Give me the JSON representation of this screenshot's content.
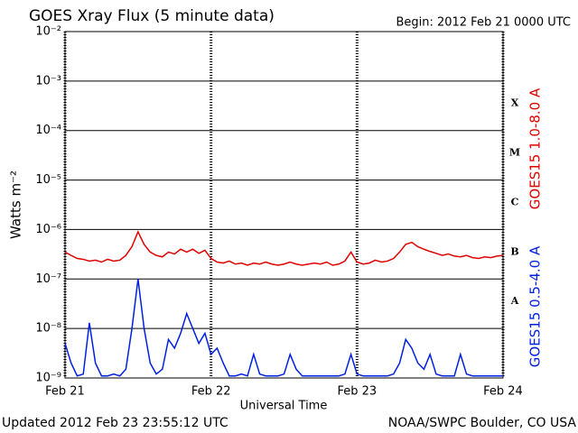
{
  "chart_data": {
    "type": "line",
    "title": "GOES Xray Flux (5 minute data)",
    "subtitle": "Begin:  2012 Feb 21 0000 UTC",
    "y_label": "Watts m⁻²",
    "x_label": "Universal Time",
    "footer_left": "Updated 2012 Feb 23 23:55:12 UTC",
    "footer_right": "NOAA/SWPC Boulder, CO USA",
    "log_y": true,
    "grid": true,
    "xlim": [
      0,
      72
    ],
    "xticks": [
      {
        "value": 0,
        "label": "Feb 21"
      },
      {
        "value": 24,
        "label": "Feb 22"
      },
      {
        "value": 48,
        "label": "Feb 23"
      },
      {
        "value": 72,
        "label": "Feb 24"
      }
    ],
    "ylim": [
      1e-09,
      0.01
    ],
    "yticks": [
      {
        "value": 1e-09,
        "label": "10⁻⁹"
      },
      {
        "value": 1e-08,
        "label": "10⁻⁸"
      },
      {
        "value": 1e-07,
        "label": "10⁻⁷"
      },
      {
        "value": 1e-06,
        "label": "10⁻⁶"
      },
      {
        "value": 1e-05,
        "label": "10⁻⁵"
      },
      {
        "value": 0.0001,
        "label": "10⁻⁴"
      },
      {
        "value": 0.001,
        "label": "10⁻³"
      },
      {
        "value": 0.01,
        "label": "10⁻²"
      }
    ],
    "flare_classes": [
      {
        "label": "X",
        "lower": 0.0001
      },
      {
        "label": "M",
        "lower": 1e-05
      },
      {
        "label": "C",
        "lower": 1e-06
      },
      {
        "label": "B",
        "lower": 1e-07
      },
      {
        "label": "A",
        "lower": 1e-08
      }
    ],
    "x": [
      0,
      1,
      2,
      3,
      4,
      5,
      6,
      7,
      8,
      9,
      10,
      11,
      12,
      13,
      14,
      15,
      16,
      17,
      18,
      19,
      20,
      21,
      22,
      23,
      24,
      25,
      26,
      27,
      28,
      29,
      30,
      31,
      32,
      33,
      34,
      35,
      36,
      37,
      38,
      39,
      40,
      41,
      42,
      43,
      44,
      45,
      46,
      47,
      48,
      49,
      50,
      51,
      52,
      53,
      54,
      55,
      56,
      57,
      58,
      59,
      60,
      61,
      62,
      63,
      64,
      65,
      66,
      67,
      68,
      69,
      70,
      71,
      72
    ],
    "series": [
      {
        "name": "GOES15 1.0-8.0 A",
        "color": "#e00000",
        "values": [
          3.5e-07,
          3e-07,
          2.6e-07,
          2.5e-07,
          2.3e-07,
          2.4e-07,
          2.2e-07,
          2.5e-07,
          2.3e-07,
          2.4e-07,
          3e-07,
          4.5e-07,
          9e-07,
          5e-07,
          3.5e-07,
          3e-07,
          2.8e-07,
          3.5e-07,
          3.2e-07,
          4e-07,
          3.5e-07,
          4e-07,
          3.3e-07,
          3.8e-07,
          2.6e-07,
          2.2e-07,
          2.1e-07,
          2.3e-07,
          2e-07,
          2.1e-07,
          1.9e-07,
          2.1e-07,
          2e-07,
          2.2e-07,
          2e-07,
          1.9e-07,
          2e-07,
          2.2e-07,
          2e-07,
          1.9e-07,
          2e-07,
          2.1e-07,
          2e-07,
          2.2e-07,
          1.9e-07,
          2e-07,
          2.3e-07,
          3.5e-07,
          2.2e-07,
          2e-07,
          2.1e-07,
          2.4e-07,
          2.2e-07,
          2.3e-07,
          2.6e-07,
          3.5e-07,
          5e-07,
          5.5e-07,
          4.5e-07,
          4e-07,
          3.6e-07,
          3.3e-07,
          3e-07,
          3.2e-07,
          2.9e-07,
          2.8e-07,
          3e-07,
          2.7e-07,
          2.6e-07,
          2.8e-07,
          2.7e-07,
          2.9e-07,
          3e-07
        ]
      },
      {
        "name": "GOES15 0.5-4.0 A",
        "color": "#0020e0",
        "values": [
          5e-09,
          2e-09,
          1.1e-09,
          1.2e-09,
          1.3e-08,
          2e-09,
          1.1e-09,
          1.1e-09,
          1.2e-09,
          1.1e-09,
          1.5e-09,
          1e-08,
          1e-07,
          1e-08,
          2e-09,
          1.2e-09,
          1.5e-09,
          6e-09,
          4e-09,
          8e-09,
          2e-08,
          1e-08,
          5e-09,
          8e-09,
          3e-09,
          4e-09,
          2e-09,
          1.1e-09,
          1.1e-09,
          1.2e-09,
          1.1e-09,
          3e-09,
          1.2e-09,
          1.1e-09,
          1.1e-09,
          1.1e-09,
          1.2e-09,
          3e-09,
          1.5e-09,
          1.1e-09,
          1.1e-09,
          1.1e-09,
          1.1e-09,
          1.1e-09,
          1.1e-09,
          1.1e-09,
          1.2e-09,
          3e-09,
          1.2e-09,
          1.1e-09,
          1.1e-09,
          1.1e-09,
          1.1e-09,
          1.1e-09,
          1.2e-09,
          2e-09,
          6e-09,
          4e-09,
          2e-09,
          1.5e-09,
          3e-09,
          1.2e-09,
          1.1e-09,
          1.1e-09,
          1.1e-09,
          3e-09,
          1.2e-09,
          1.1e-09,
          1.1e-09,
          1.1e-09,
          1.1e-09,
          1.1e-09,
          1.1e-09
        ]
      }
    ]
  }
}
